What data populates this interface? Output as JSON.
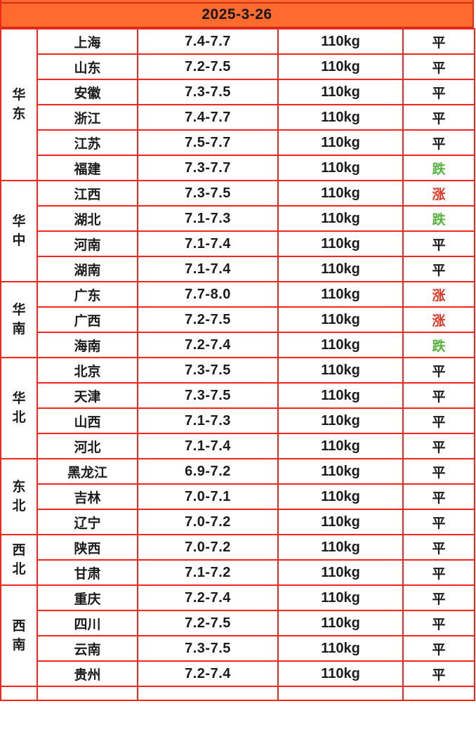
{
  "header": {
    "date": "2025-3-26",
    "background_color": "#FF6B2E",
    "line_color": "#D52C12"
  },
  "table": {
    "border_color": "#F5271C",
    "text_color": "#1B1B1B",
    "trend_colors": {
      "平": "#1B1B1B",
      "涨": "#E93323",
      "跌": "#55B43C"
    }
  },
  "chart_data": {
    "type": "table",
    "title": "2025-3-26",
    "columns": [
      "region",
      "province",
      "price_range",
      "weight",
      "trend"
    ],
    "regions": [
      {
        "name": "华东",
        "rows": [
          {
            "province": "上海",
            "price": "7.4-7.7",
            "weight": "110kg",
            "trend": "平"
          },
          {
            "province": "山东",
            "price": "7.2-7.5",
            "weight": "110kg",
            "trend": "平"
          },
          {
            "province": "安徽",
            "price": "7.3-7.5",
            "weight": "110kg",
            "trend": "平"
          },
          {
            "province": "浙江",
            "price": "7.4-7.7",
            "weight": "110kg",
            "trend": "平"
          },
          {
            "province": "江苏",
            "price": "7.5-7.7",
            "weight": "110kg",
            "trend": "平"
          },
          {
            "province": "福建",
            "price": "7.3-7.7",
            "weight": "110kg",
            "trend": "跌"
          }
        ]
      },
      {
        "name": "华中",
        "rows": [
          {
            "province": "江西",
            "price": "7.3-7.5",
            "weight": "110kg",
            "trend": "涨"
          },
          {
            "province": "湖北",
            "price": "7.1-7.3",
            "weight": "110kg",
            "trend": "跌"
          },
          {
            "province": "河南",
            "price": "7.1-7.4",
            "weight": "110kg",
            "trend": "平"
          },
          {
            "province": "湖南",
            "price": "7.1-7.4",
            "weight": "110kg",
            "trend": "平"
          }
        ]
      },
      {
        "name": "华南",
        "rows": [
          {
            "province": "广东",
            "price": "7.7-8.0",
            "weight": "110kg",
            "trend": "涨"
          },
          {
            "province": "广西",
            "price": "7.2-7.5",
            "weight": "110kg",
            "trend": "涨"
          },
          {
            "province": "海南",
            "price": "7.2-7.4",
            "weight": "110kg",
            "trend": "跌"
          }
        ]
      },
      {
        "name": "华北",
        "rows": [
          {
            "province": "北京",
            "price": "7.3-7.5",
            "weight": "110kg",
            "trend": "平"
          },
          {
            "province": "天津",
            "price": "7.3-7.5",
            "weight": "110kg",
            "trend": "平"
          },
          {
            "province": "山西",
            "price": "7.1-7.3",
            "weight": "110kg",
            "trend": "平"
          },
          {
            "province": "河北",
            "price": "7.1-7.4",
            "weight": "110kg",
            "trend": "平"
          }
        ]
      },
      {
        "name": "东北",
        "rows": [
          {
            "province": "黑龙江",
            "price": "6.9-7.2",
            "weight": "110kg",
            "trend": "平"
          },
          {
            "province": "吉林",
            "price": "7.0-7.1",
            "weight": "110kg",
            "trend": "平"
          },
          {
            "province": "辽宁",
            "price": "7.0-7.2",
            "weight": "110kg",
            "trend": "平"
          }
        ]
      },
      {
        "name": "西北",
        "rows": [
          {
            "province": "陕西",
            "price": "7.0-7.2",
            "weight": "110kg",
            "trend": "平"
          },
          {
            "province": "甘肃",
            "price": "7.1-7.2",
            "weight": "110kg",
            "trend": "平"
          }
        ]
      },
      {
        "name": "西南",
        "rows": [
          {
            "province": "重庆",
            "price": "7.2-7.4",
            "weight": "110kg",
            "trend": "平"
          },
          {
            "province": "四川",
            "price": "7.2-7.5",
            "weight": "110kg",
            "trend": "平"
          },
          {
            "province": "云南",
            "price": "7.3-7.5",
            "weight": "110kg",
            "trend": "平"
          },
          {
            "province": "贵州",
            "price": "7.2-7.4",
            "weight": "110kg",
            "trend": "平"
          }
        ]
      }
    ]
  }
}
